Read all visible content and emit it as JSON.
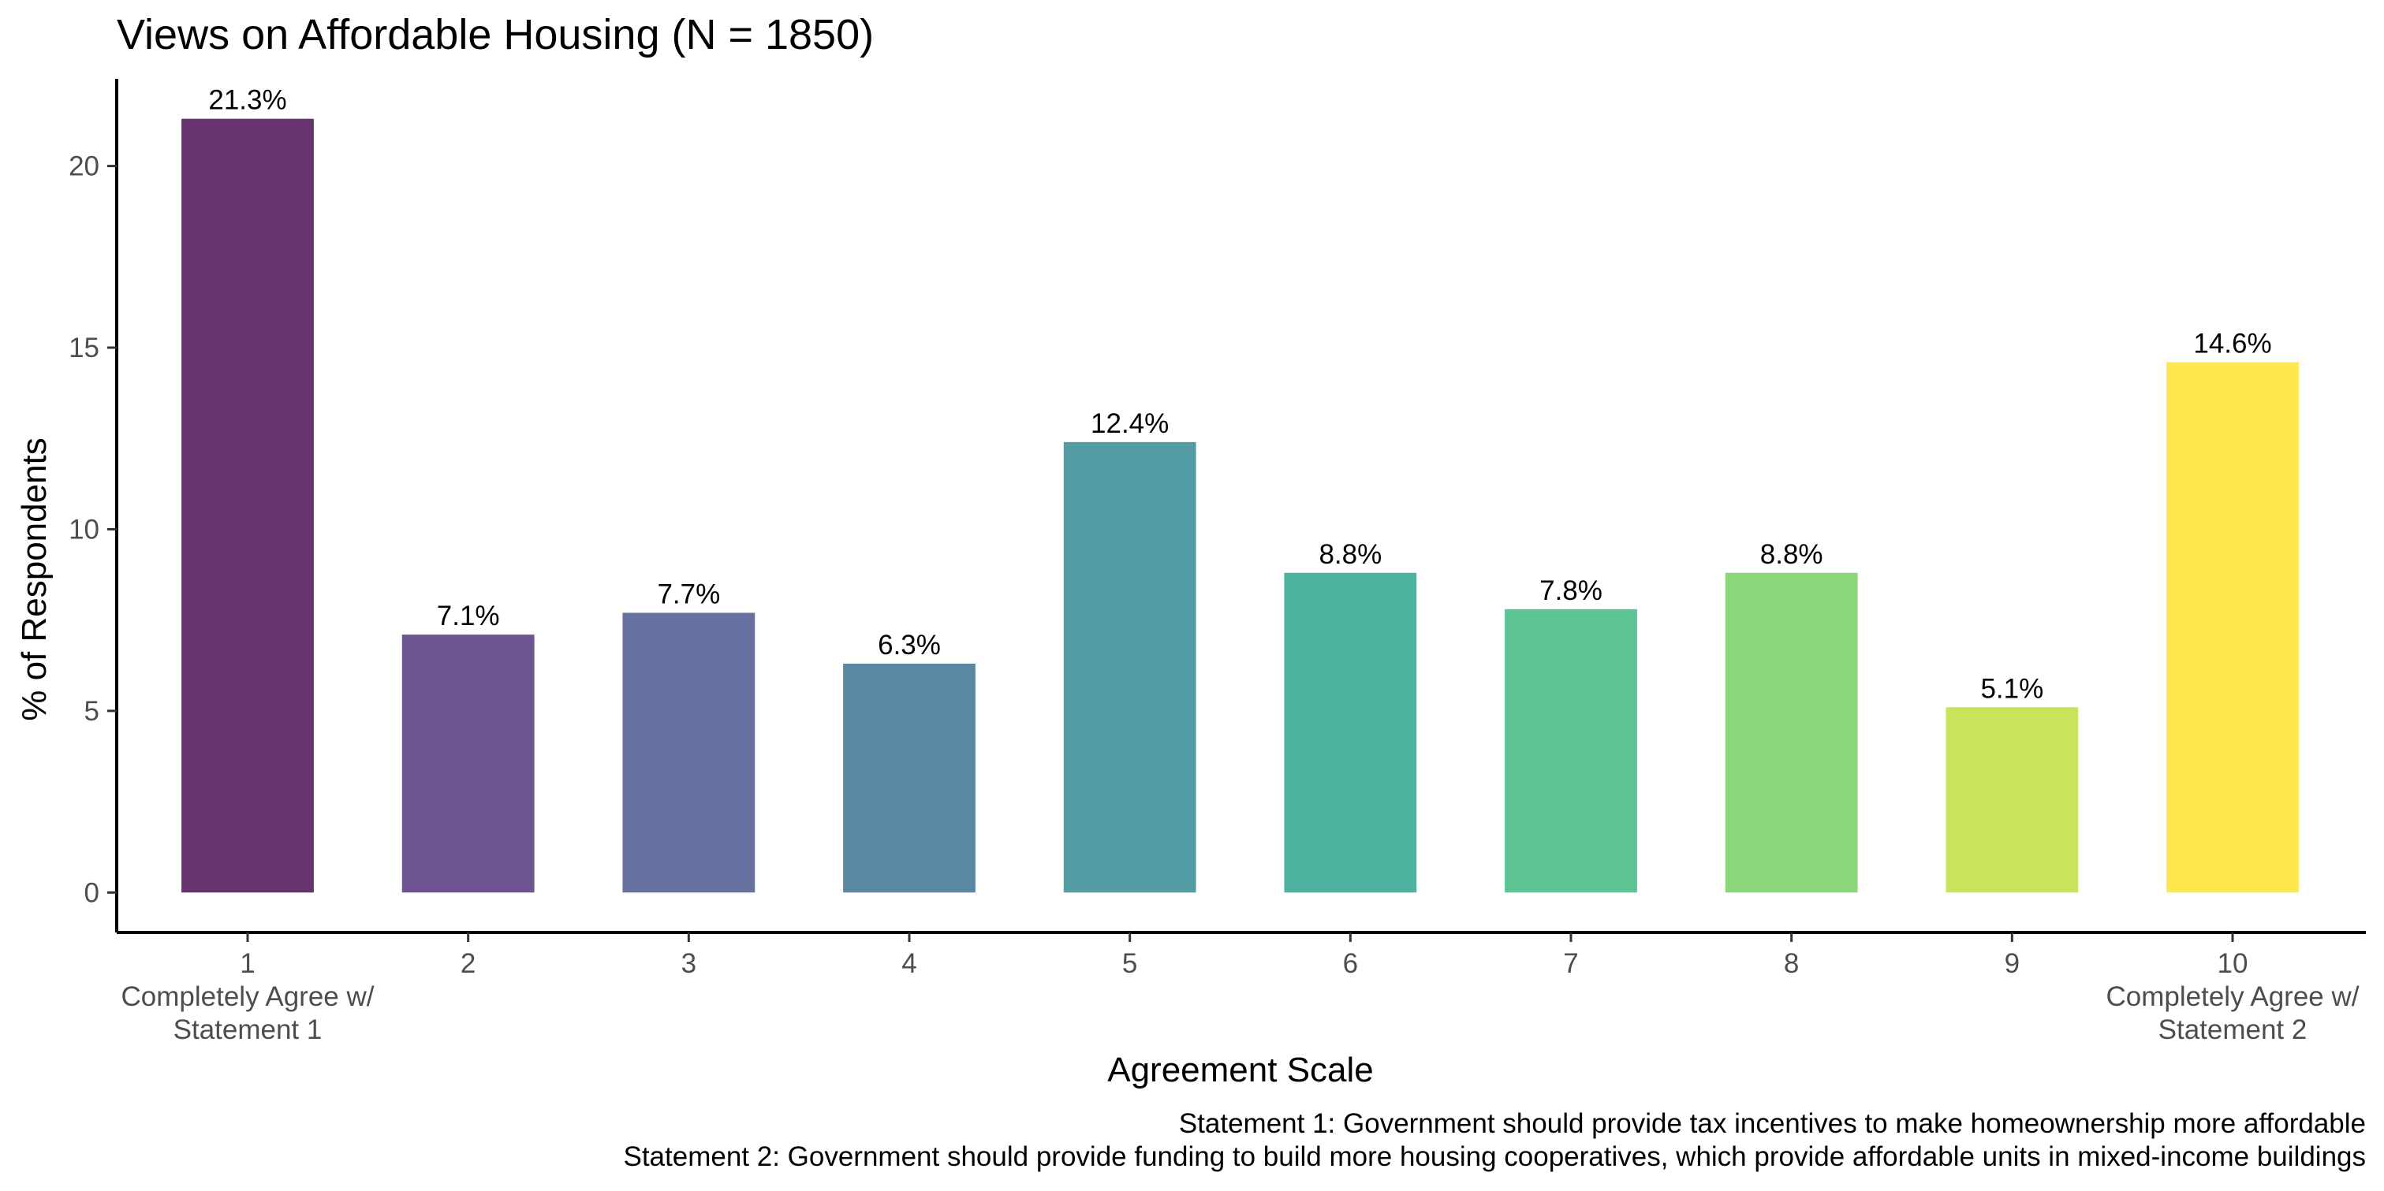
{
  "chart_data": {
    "type": "bar",
    "title": "Views on Affordable Housing (N = 1850)",
    "xlabel": "Agreement Scale",
    "ylabel": "% of Respondents",
    "categories": [
      "1",
      "2",
      "3",
      "4",
      "5",
      "6",
      "7",
      "8",
      "9",
      "10"
    ],
    "category_sublabels": {
      "1": [
        "Completely Agree w/",
        "Statement 1"
      ],
      "10": [
        "Completely Agree w/",
        "Statement 2"
      ]
    },
    "values": [
      21.3,
      7.1,
      7.7,
      6.3,
      12.4,
      8.8,
      7.8,
      8.8,
      5.1,
      14.6
    ],
    "value_labels": [
      "21.3%",
      "7.1%",
      "7.7%",
      "6.3%",
      "12.4%",
      "8.8%",
      "7.8%",
      "8.8%",
      "5.1%",
      "14.6%"
    ],
    "colors": [
      "#67336f",
      "#6e5591",
      "#66719f",
      "#5a88a3",
      "#539ca3",
      "#4db2a0",
      "#5cc492",
      "#8bd678",
      "#c7e45a",
      "#fde94f"
    ],
    "yticks": [
      0,
      5,
      10,
      15,
      20
    ],
    "ylim": [
      -1.1,
      22.4
    ],
    "grid": false,
    "legend": "none",
    "caption": [
      "Statement 1: Government should provide tax incentives to make homeownership more affordable",
      "Statement 2: Government should provide funding to build more housing cooperatives, which provide affordable units in mixed-income buildings"
    ]
  }
}
